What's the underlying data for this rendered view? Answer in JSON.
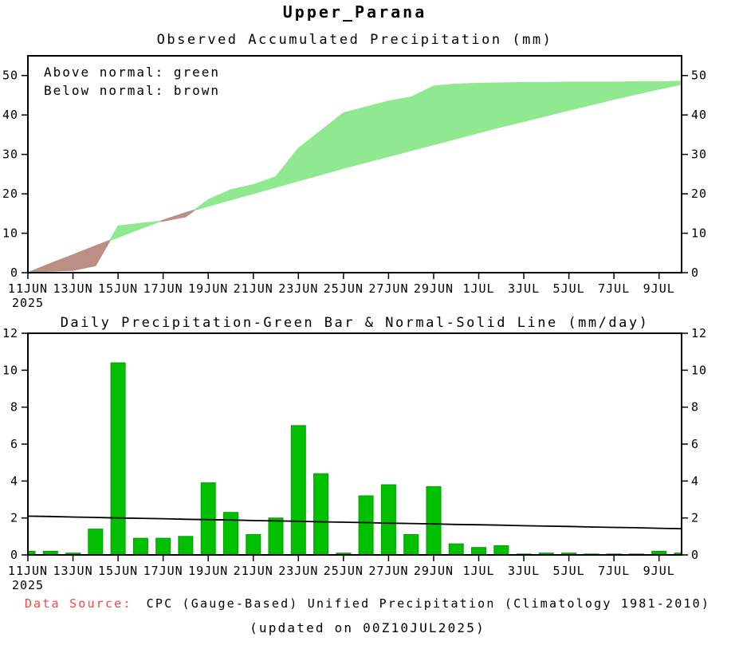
{
  "title": "Upper_Parana",
  "footer": {
    "source_label": "Data Source:",
    "source_text": "CPC (Gauge-Based) Unified Precipitation (Climatology 1981-2010)",
    "updated": "(updated on 00Z10JUL2025)"
  },
  "colors": {
    "above_fill": "#90e890",
    "below_fill": "#bb8f85",
    "bar": "#00c000",
    "bar_edge": "#00a000",
    "normal_line": "#000000",
    "frame": "#000000",
    "source_label_color": "#ff4444"
  },
  "chart_data": [
    {
      "type": "area",
      "title": "Observed Accumulated Precipitation (mm)",
      "legend": [
        "Above normal: green",
        "Below normal: brown"
      ],
      "xlabel": "",
      "ylabel": "",
      "ylim": [
        0,
        50
      ],
      "yticks": [
        0,
        10,
        20,
        30,
        40,
        50
      ],
      "grid": false,
      "year_label": "2025",
      "x_tick_indices": [
        0,
        2,
        4,
        6,
        8,
        10,
        12,
        14,
        16,
        18,
        20,
        22,
        24,
        26,
        28
      ],
      "x_tick_labels": [
        "11JUN",
        "13JUN",
        "15JUN",
        "17JUN",
        "19JUN",
        "21JUN",
        "23JUN",
        "25JUN",
        "27JUN",
        "29JUN",
        "1JUL",
        "3JUL",
        "5JUL",
        "7JUL",
        "9JUL"
      ],
      "x_dates": [
        "11JUN",
        "12JUN",
        "13JUN",
        "14JUN",
        "15JUN",
        "16JUN",
        "17JUN",
        "18JUN",
        "19JUN",
        "20JUN",
        "21JUN",
        "22JUN",
        "23JUN",
        "24JUN",
        "25JUN",
        "26JUN",
        "27JUN",
        "28JUN",
        "29JUN",
        "30JUN",
        "1JUL",
        "2JUL",
        "3JUL",
        "4JUL",
        "5JUL",
        "6JUL",
        "7JUL",
        "8JUL",
        "9JUL",
        "10JUL"
      ],
      "series": [
        {
          "name": "Observed accumulated precipitation",
          "values": [
            0.2,
            0.4,
            0.6,
            1.8,
            11.8,
            12.5,
            13.1,
            14.2,
            18.5,
            21.0,
            22.3,
            24.3,
            31.5,
            36.0,
            40.5,
            42.0,
            43.5,
            44.5,
            47.3,
            47.8,
            48.0,
            48.1,
            48.2,
            48.2,
            48.3,
            48.3,
            48.3,
            48.4,
            48.4,
            48.5
          ]
        },
        {
          "name": "Normal accumulated precipitation",
          "values": [
            0.0,
            2.3,
            4.5,
            6.8,
            9.0,
            11.2,
            13.3,
            15.2,
            16.9,
            18.5,
            20.1,
            21.7,
            23.3,
            24.9,
            26.5,
            28.0,
            29.5,
            31.0,
            32.5,
            34.0,
            35.5,
            37.0,
            38.4,
            39.8,
            41.2,
            42.6,
            44.0,
            45.3,
            46.6,
            47.8
          ]
        }
      ]
    },
    {
      "type": "bar",
      "title": "Daily Precipitation-Green Bar & Normal-Solid Line (mm/day)",
      "xlabel": "",
      "ylabel": "",
      "ylim": [
        0,
        12
      ],
      "yticks": [
        0,
        2,
        4,
        6,
        8,
        10,
        12
      ],
      "grid": false,
      "year_label": "2025",
      "x_tick_indices": [
        0,
        2,
        4,
        6,
        8,
        10,
        12,
        14,
        16,
        18,
        20,
        22,
        24,
        26,
        28
      ],
      "x_tick_labels": [
        "11JUN",
        "13JUN",
        "15JUN",
        "17JUN",
        "19JUN",
        "21JUN",
        "23JUN",
        "25JUN",
        "27JUN",
        "29JUN",
        "1JUL",
        "3JUL",
        "5JUL",
        "7JUL",
        "9JUL"
      ],
      "x_dates": [
        "11JUN",
        "12JUN",
        "13JUN",
        "14JUN",
        "15JUN",
        "16JUN",
        "17JUN",
        "18JUN",
        "19JUN",
        "20JUN",
        "21JUN",
        "22JUN",
        "23JUN",
        "24JUN",
        "25JUN",
        "26JUN",
        "27JUN",
        "28JUN",
        "29JUN",
        "30JUN",
        "1JUL",
        "2JUL",
        "3JUL",
        "4JUL",
        "5JUL",
        "6JUL",
        "7JUL",
        "8JUL",
        "9JUL",
        "10JUL"
      ],
      "series": [
        {
          "name": "Daily precipitation (green bar)",
          "type": "bar",
          "values": [
            0.2,
            0.2,
            0.1,
            1.4,
            10.4,
            0.9,
            0.9,
            1.0,
            3.9,
            2.3,
            1.1,
            2.0,
            7.0,
            4.4,
            0.1,
            3.2,
            3.8,
            1.1,
            3.7,
            0.6,
            0.4,
            0.5,
            0.05,
            0.1,
            0.1,
            0.05,
            0.05,
            0.05,
            0.2,
            0.1
          ]
        },
        {
          "name": "Normal (solid line)",
          "type": "line",
          "values": [
            2.1,
            2.08,
            2.05,
            2.03,
            2.0,
            1.98,
            1.96,
            1.93,
            1.91,
            1.89,
            1.86,
            1.84,
            1.82,
            1.79,
            1.77,
            1.75,
            1.72,
            1.7,
            1.68,
            1.65,
            1.63,
            1.61,
            1.58,
            1.56,
            1.54,
            1.51,
            1.49,
            1.47,
            1.44,
            1.42
          ]
        }
      ]
    }
  ]
}
